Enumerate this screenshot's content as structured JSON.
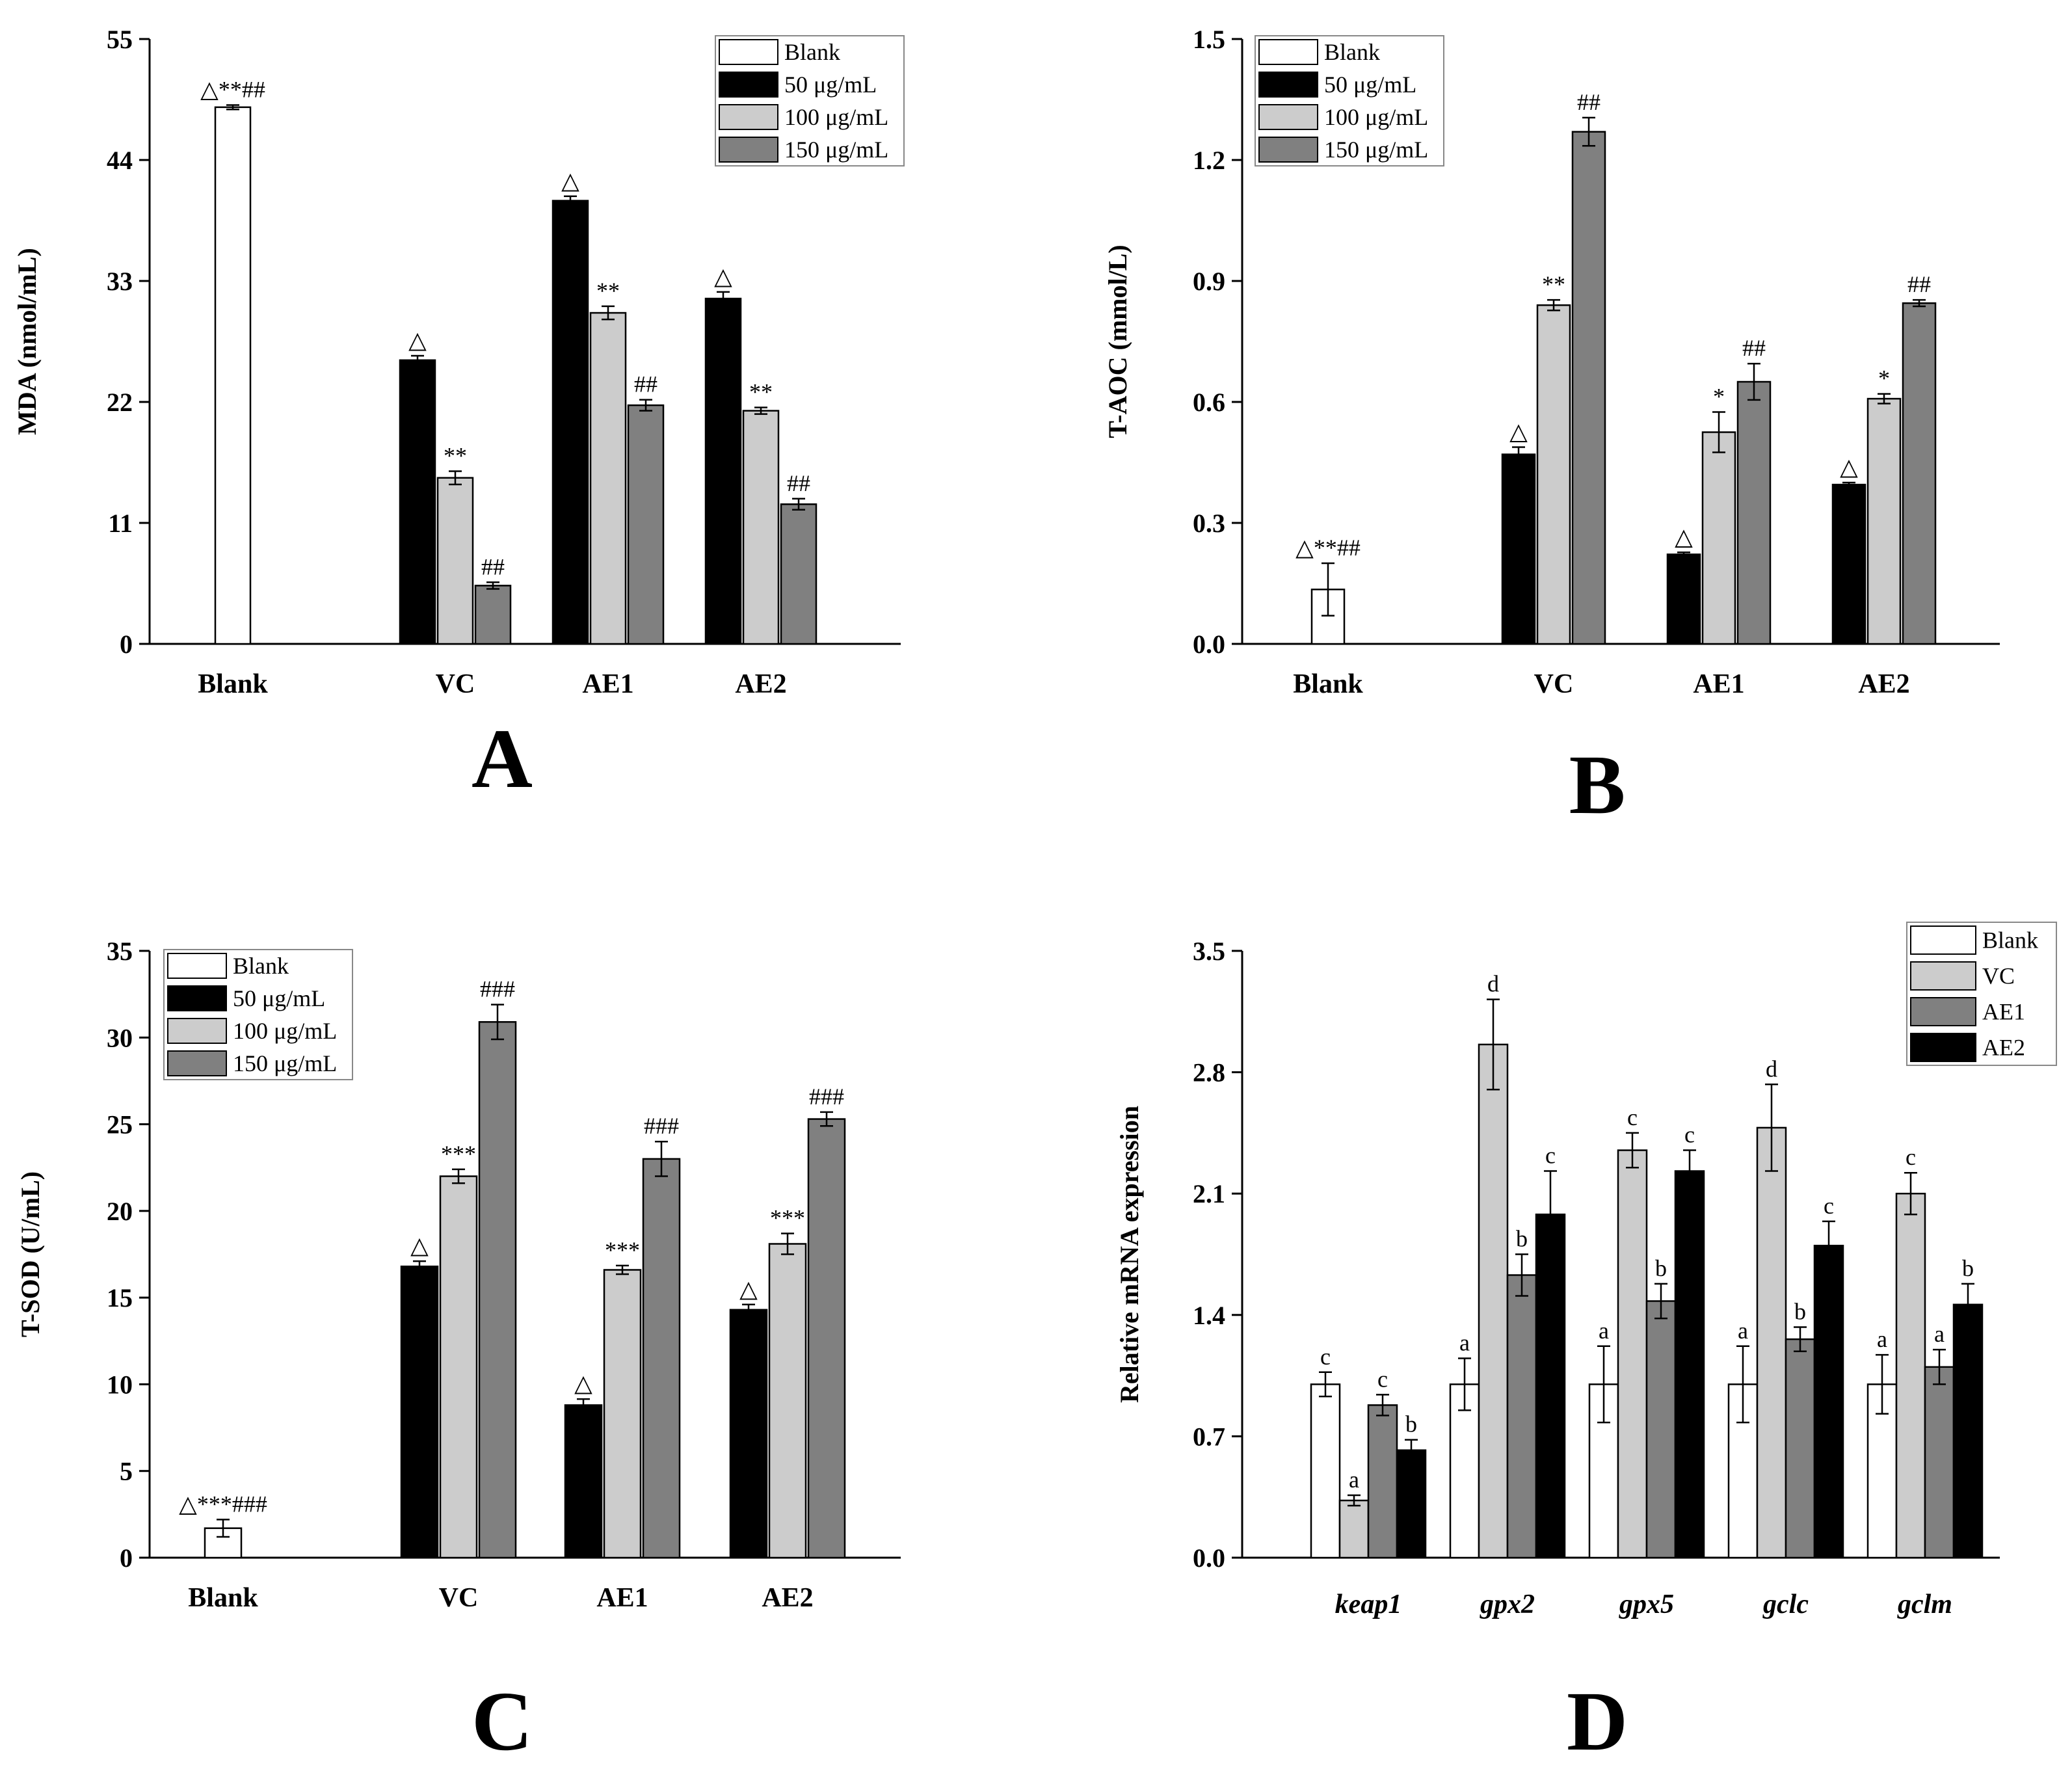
{
  "colors": {
    "blank": "#ffffff",
    "c50": "#000000",
    "c100": "#cccccc",
    "c150": "#808080",
    "vc": "#cccccc",
    "ae1": "#808080",
    "ae2": "#000000"
  },
  "chart_data": [
    {
      "panel": "A",
      "type": "bar",
      "ylabel": "MDA (nmol/mL)",
      "ylim": [
        0,
        55
      ],
      "yticks": [
        "0",
        "11",
        "22",
        "33",
        "44",
        "55"
      ],
      "categories": [
        "Blank",
        "VC",
        "AE1",
        "AE2"
      ],
      "legend": [
        "Blank",
        "50 μg/mL",
        "100 μg/mL",
        "150 μg/mL"
      ],
      "series": [
        {
          "name": "Blank",
          "values": [
            48.8,
            null,
            null,
            null
          ],
          "errors": [
            0.2,
            null,
            null,
            null
          ],
          "labels": [
            "△**##",
            "",
            "",
            ""
          ]
        },
        {
          "name": "50 μg/mL",
          "values": [
            null,
            25.8,
            40.3,
            31.4
          ],
          "errors": [
            null,
            0.4,
            0.4,
            0.6
          ],
          "labels": [
            "",
            "△",
            "△",
            "△"
          ]
        },
        {
          "name": "100 μg/mL",
          "values": [
            null,
            15.1,
            30.1,
            21.2
          ],
          "errors": [
            null,
            0.6,
            0.6,
            0.3
          ],
          "labels": [
            "",
            "**",
            "**",
            "**"
          ]
        },
        {
          "name": "150 μg/mL",
          "values": [
            null,
            5.3,
            21.7,
            12.7
          ],
          "errors": [
            null,
            0.3,
            0.5,
            0.5
          ],
          "labels": [
            "",
            "##",
            "##",
            "##"
          ]
        }
      ]
    },
    {
      "panel": "B",
      "type": "bar",
      "ylabel": "T-AOC (mmol/L)",
      "ylim": [
        0,
        1.5
      ],
      "yticks": [
        "0.0",
        "0.3",
        "0.6",
        "0.9",
        "1.2",
        "1.5"
      ],
      "categories": [
        "Blank",
        "VC",
        "AE1",
        "AE2"
      ],
      "legend": [
        "Blank",
        "50 μg/mL",
        "100 μg/mL",
        "150 μg/mL"
      ],
      "series": [
        {
          "name": "Blank",
          "values": [
            0.135,
            null,
            null,
            null
          ],
          "errors": [
            0.065,
            null,
            null,
            null
          ],
          "labels": [
            "△**##",
            "",
            "",
            ""
          ]
        },
        {
          "name": "50 μg/mL",
          "values": [
            null,
            0.47,
            0.222,
            0.395
          ],
          "errors": [
            null,
            0.018,
            0.005,
            0.005
          ],
          "labels": [
            "",
            "△",
            "△",
            "△"
          ]
        },
        {
          "name": "100 μg/mL",
          "values": [
            null,
            0.84,
            0.525,
            0.608
          ],
          "errors": [
            null,
            0.013,
            0.05,
            0.012
          ],
          "labels": [
            "",
            "**",
            "*",
            "*"
          ]
        },
        {
          "name": "150 μg/mL",
          "values": [
            null,
            1.27,
            0.65,
            0.845
          ],
          "errors": [
            null,
            0.035,
            0.045,
            0.008
          ],
          "labels": [
            "",
            "##",
            "##",
            "##"
          ]
        }
      ]
    },
    {
      "panel": "C",
      "type": "bar",
      "ylabel": "T-SOD (U/mL)",
      "ylim": [
        0,
        35
      ],
      "yticks": [
        "0",
        "5",
        "10",
        "15",
        "20",
        "25",
        "30",
        "35"
      ],
      "categories": [
        "Blank",
        "VC",
        "AE1",
        "AE2"
      ],
      "legend": [
        "Blank",
        "50 μg/mL",
        "100 μg/mL",
        "150 μg/mL"
      ],
      "series": [
        {
          "name": "Blank",
          "values": [
            1.7,
            null,
            null,
            null
          ],
          "errors": [
            0.5,
            null,
            null,
            null
          ],
          "labels": [
            "△***###",
            "",
            "",
            ""
          ]
        },
        {
          "name": "50 μg/mL",
          "values": [
            null,
            16.8,
            8.8,
            14.3
          ],
          "errors": [
            null,
            0.3,
            0.35,
            0.3
          ],
          "labels": [
            "",
            "△",
            "△",
            "△"
          ]
        },
        {
          "name": "100 μg/mL",
          "values": [
            null,
            22.0,
            16.6,
            18.1
          ],
          "errors": [
            null,
            0.4,
            0.25,
            0.6
          ],
          "labels": [
            "",
            "***",
            "***",
            "***"
          ]
        },
        {
          "name": "150 μg/mL",
          "values": [
            null,
            30.9,
            23.0,
            25.3
          ],
          "errors": [
            null,
            1.0,
            1.0,
            0.4
          ],
          "labels": [
            "",
            "###",
            "###",
            "###"
          ]
        }
      ]
    },
    {
      "panel": "D",
      "type": "bar",
      "ylabel": "Relative mRNA expression",
      "ylim": [
        0,
        3.5
      ],
      "yticks": [
        "0.0",
        "0.7",
        "1.4",
        "2.1",
        "2.8",
        "3.5"
      ],
      "categories": [
        "keap1",
        "gpx2",
        "gpx5",
        "gclc",
        "gclm"
      ],
      "legend": [
        "Blank",
        "VC",
        "AE1",
        "AE2"
      ],
      "series": [
        {
          "name": "Blank",
          "values": [
            1.0,
            1.0,
            1.0,
            1.0,
            1.0
          ],
          "errors": [
            0.07,
            0.15,
            0.22,
            0.22,
            0.17
          ],
          "labels": [
            "c",
            "a",
            "a",
            "a",
            "a"
          ]
        },
        {
          "name": "VC",
          "values": [
            0.33,
            2.96,
            2.35,
            2.48,
            2.1
          ],
          "errors": [
            0.03,
            0.26,
            0.1,
            0.25,
            0.12
          ],
          "labels": [
            "a",
            "d",
            "c",
            "d",
            "c"
          ]
        },
        {
          "name": "AE1",
          "values": [
            0.88,
            1.63,
            1.48,
            1.26,
            1.1
          ],
          "errors": [
            0.06,
            0.12,
            0.1,
            0.07,
            0.1
          ],
          "labels": [
            "c",
            "b",
            "b",
            "b",
            "a"
          ]
        },
        {
          "name": "AE2",
          "values": [
            0.62,
            1.98,
            2.23,
            1.8,
            1.46
          ],
          "errors": [
            0.06,
            0.25,
            0.12,
            0.14,
            0.12
          ],
          "labels": [
            "b",
            "c",
            "c",
            "c",
            "b"
          ]
        }
      ]
    }
  ],
  "panel_letters": [
    "A",
    "B",
    "C",
    "D"
  ]
}
